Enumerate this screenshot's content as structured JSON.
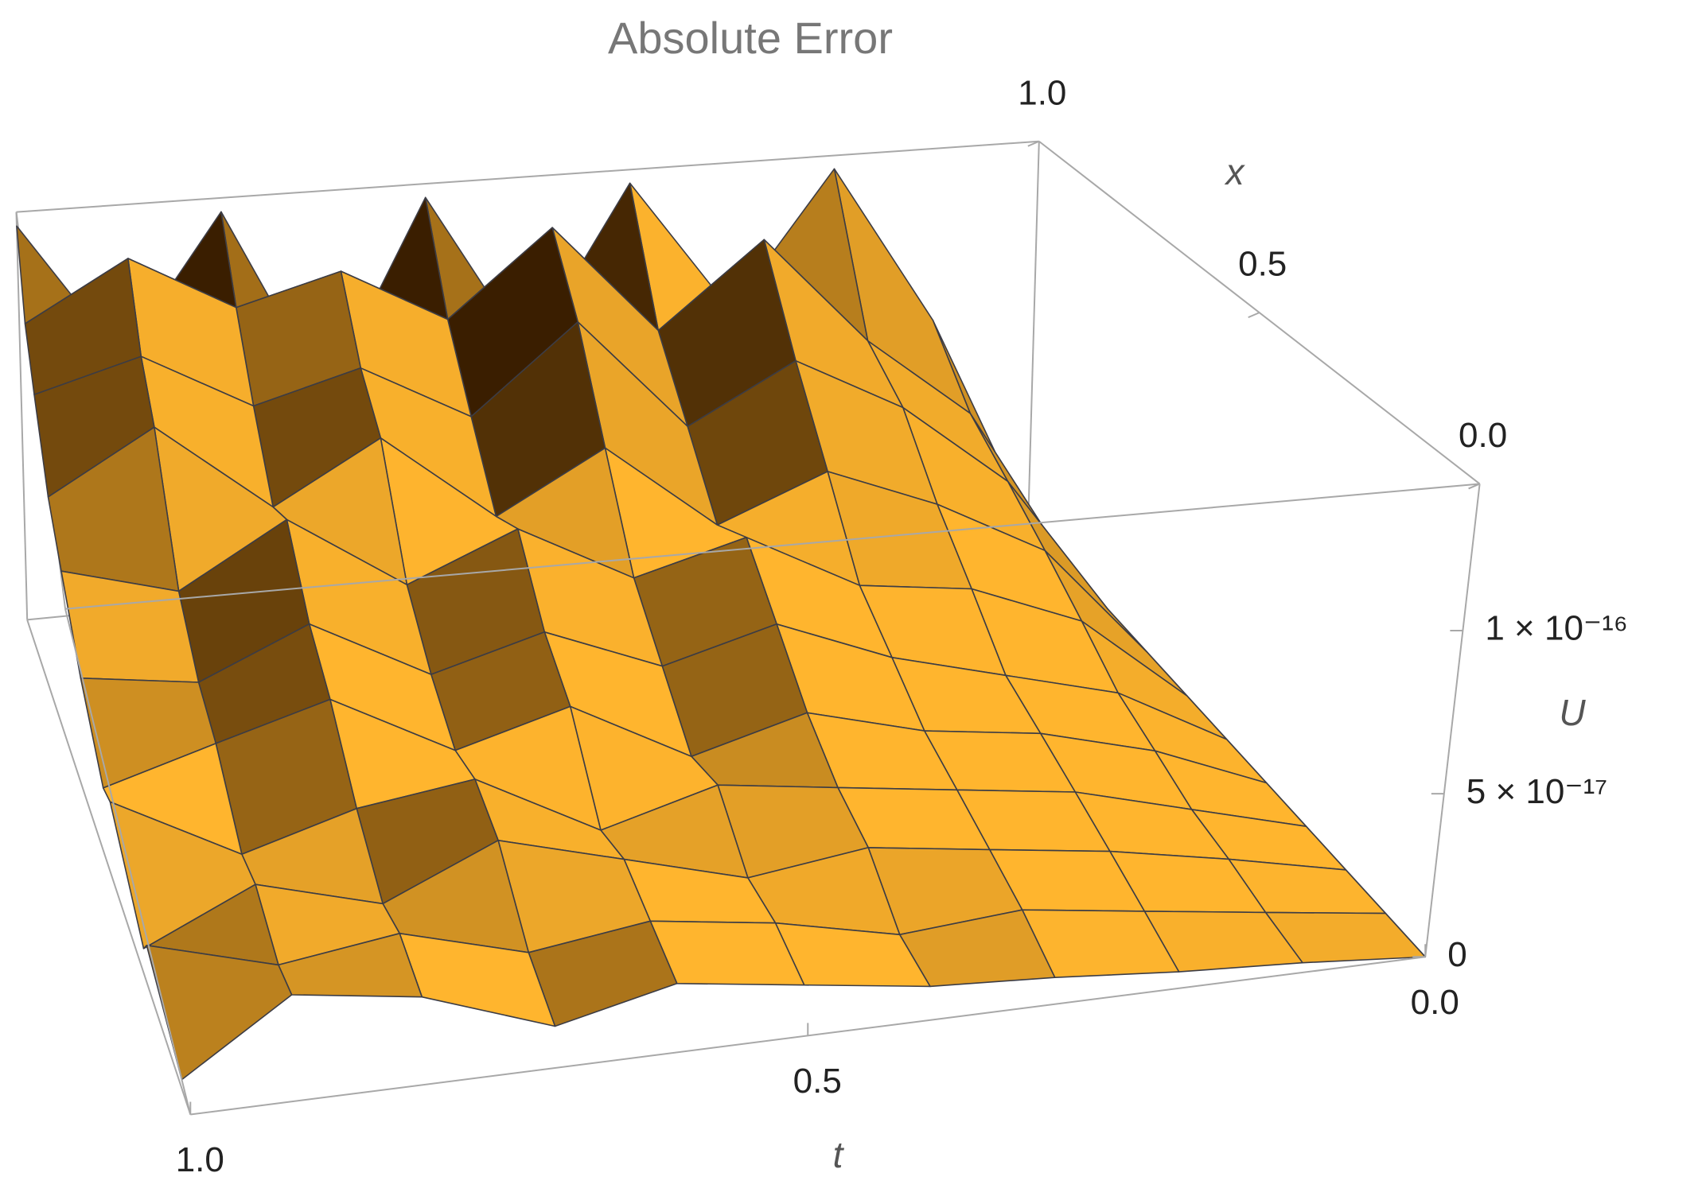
{
  "chart_data": {
    "type": "surface",
    "title": "Absolute Error",
    "xlabel": "t",
    "ylabel": "x",
    "zlabel": "U",
    "t": [
      0,
      0.1,
      0.2,
      0.3,
      0.4,
      0.5,
      0.6,
      0.7,
      0.8,
      0.9,
      1
    ],
    "x": [
      0,
      0.1,
      0.2,
      0.3,
      0.4,
      0.5,
      0.6,
      0.7,
      0.8,
      0.9,
      1
    ],
    "z": [
      [
        0,
        3e-18,
        5e-18,
        8e-18,
        1e-17,
        1.5e-17,
        2e-17,
        1.2e-17,
        2.5e-17,
        3e-17,
        1e-17
      ],
      [
        0,
        5e-18,
        1e-17,
        1.5e-17,
        1.2e-17,
        2e-17,
        2.5e-17,
        2e-17,
        3e-17,
        2.5e-17,
        3.5e-17
      ],
      [
        0,
        8e-18,
        1.5e-17,
        2e-17,
        2.5e-17,
        2e-17,
        3e-17,
        4e-17,
        2.5e-17,
        3.5e-17,
        2e-17
      ],
      [
        0,
        1e-17,
        2e-17,
        2.5e-17,
        3e-17,
        3.5e-17,
        2.5e-17,
        4.5e-17,
        4e-17,
        3e-17,
        5e-17
      ],
      [
        0,
        1.5e-17,
        2.5e-17,
        3e-17,
        4e-17,
        3e-17,
        5e-17,
        4e-17,
        6e-17,
        5e-17,
        4e-17
      ],
      [
        0,
        2e-17,
        3e-17,
        4e-17,
        5.5e-17,
        4.5e-17,
        6e-17,
        5e-17,
        7e-17,
        5.5e-17,
        6e-17
      ],
      [
        0,
        3e-17,
        4.5e-17,
        5e-17,
        7e-17,
        6e-17,
        8e-17,
        6.5e-17,
        9e-17,
        7e-17,
        8e-17
      ],
      [
        0,
        4e-17,
        6e-17,
        7.5e-17,
        6e-17,
        9e-17,
        7e-17,
        1e-16,
        8e-17,
        1.1e-16,
        9e-17
      ],
      [
        0,
        5e-17,
        8e-17,
        1e-16,
        8e-17,
        1.2e-16,
        9e-17,
        1.1e-16,
        1e-16,
        1.2e-16,
        1.1e-16
      ],
      [
        0,
        6e-17,
        9e-17,
        1.3e-16,
        1e-16,
        1.4e-16,
        1.1e-16,
        1.3e-16,
        1.2e-16,
        1.4e-16,
        1.2e-16
      ],
      [
        0,
        8e-17,
        1.4e-16,
        9e-17,
        1.4e-16,
        8e-17,
        1.4e-16,
        7e-17,
        1.4e-16,
        9e-17,
        1.4e-16
      ]
    ],
    "tlim": [
      0,
      1
    ],
    "xlim": [
      0,
      1
    ],
    "zlim": [
      0,
      1.45e-16
    ],
    "tticks": [
      {
        "value": 0,
        "label": "0.0"
      },
      0.5,
      {
        "value": 1,
        "label": "1.0"
      }
    ],
    "xticks": [
      {
        "value": 0,
        "label": "0.0"
      },
      0.5,
      {
        "value": 1,
        "label": "1.0"
      }
    ],
    "zticks": [
      0,
      {
        "value": 5e-17,
        "label": "5 × 10⁻¹⁷"
      },
      {
        "value": 1e-16,
        "label": "1 × 10⁻¹⁶"
      }
    ],
    "color_dark": "#3a1e00",
    "color_light": "#ffb52e",
    "mesh_color": "#3c3c44",
    "box_color": "#a8a8a8"
  }
}
